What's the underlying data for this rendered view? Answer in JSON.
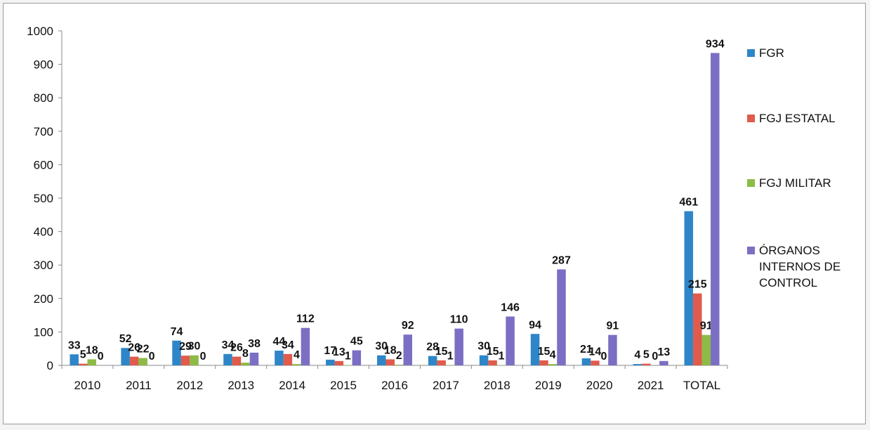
{
  "chart_data": {
    "type": "bar",
    "categories": [
      "2010",
      "2011",
      "2012",
      "2013",
      "2014",
      "2015",
      "2016",
      "2017",
      "2018",
      "2019",
      "2020",
      "2021",
      "TOTAL"
    ],
    "series": [
      {
        "name": "FGR",
        "color": "#2e86c8",
        "values": [
          33,
          52,
          74,
          34,
          44,
          17,
          30,
          28,
          30,
          94,
          21,
          4,
          461
        ]
      },
      {
        "name": "FGJ ESTATAL",
        "color": "#e05b4b",
        "values": [
          5,
          26,
          29,
          26,
          34,
          13,
          18,
          15,
          15,
          15,
          14,
          5,
          215
        ]
      },
      {
        "name": "FGJ MILITAR",
        "color": "#8dbb45",
        "values": [
          18,
          22,
          30,
          8,
          4,
          1,
          2,
          1,
          1,
          4,
          0,
          0,
          91
        ]
      },
      {
        "name": "ÓRGANOS INTERNOS DE CONTROL",
        "color": "#7b6fc4",
        "values": [
          0,
          0,
          0,
          38,
          112,
          45,
          92,
          110,
          146,
          287,
          91,
          13,
          934
        ]
      }
    ],
    "legend_lines": [
      [
        "FGR"
      ],
      [
        "FGJ ESTATAL"
      ],
      [
        "FGJ MILITAR"
      ],
      [
        "ÓRGANOS",
        "INTERNOS DE",
        "CONTROL"
      ]
    ],
    "ylim": [
      0,
      1000
    ],
    "yticks": [
      0,
      100,
      200,
      300,
      400,
      500,
      600,
      700,
      800,
      900,
      1000
    ],
    "legend_position": "right",
    "grid": false,
    "xlabel": "",
    "ylabel": "",
    "title": ""
  }
}
